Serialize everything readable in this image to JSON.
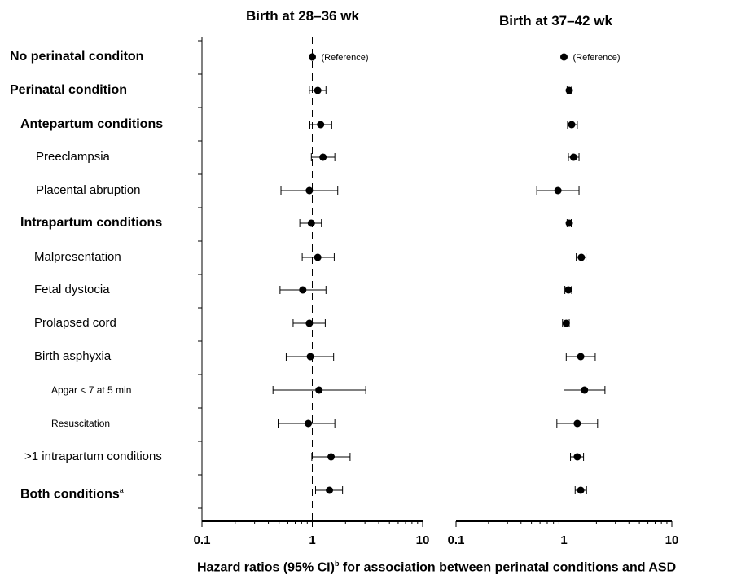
{
  "panels": [
    {
      "title": "Birth at 28–36 wk"
    },
    {
      "title": "Birth at 37–42 wk"
    }
  ],
  "rows": [
    {
      "label": "No perinatal conditon",
      "level": "lvl0"
    },
    {
      "label": "Perinatal condition",
      "level": "lvl0"
    },
    {
      "label": "Antepartum conditions",
      "level": "lvl1"
    },
    {
      "label": "Preeclampsia",
      "level": "lvl2"
    },
    {
      "label": "Placental abruption",
      "level": "lvl2"
    },
    {
      "label": "Intrapartum conditions",
      "level": "lvl1"
    },
    {
      "label": "Malpresentation",
      "level": "lvl2b"
    },
    {
      "label": "Fetal dystocia",
      "level": "lvl2b"
    },
    {
      "label": "Prolapsed cord",
      "level": "lvl2b"
    },
    {
      "label": "Birth asphyxia",
      "level": "lvl2b"
    },
    {
      "label": "Apgar < 7 at 5 min",
      "level": "lvl3"
    },
    {
      "label": "Resuscitation",
      "level": "lvl3"
    },
    {
      "label": ">1 intrapartum conditions",
      "level": "lvl2c"
    },
    {
      "label": "Both conditions",
      "level": "lvl1",
      "sup": "a"
    }
  ],
  "xlabel": {
    "main": "Hazard ratios (95% CI)",
    "sup": "b",
    "tail": " for association between perinatal conditions and ASD"
  },
  "chart_data": [
    {
      "type": "forest",
      "title": "Birth at 28–36 wk",
      "xscale": "log",
      "xlim": [
        0.1,
        10
      ],
      "xticks": [
        "0.1",
        "1",
        "10"
      ],
      "reference_line": 1,
      "reference_note": "(Reference)",
      "points": [
        {
          "hr": 1.0,
          "lo": null,
          "hi": null,
          "ref": true
        },
        {
          "hr": 1.12,
          "lo": 0.94,
          "hi": 1.33
        },
        {
          "hr": 1.19,
          "lo": 0.95,
          "hi": 1.5
        },
        {
          "hr": 1.25,
          "lo": 0.98,
          "hi": 1.6
        },
        {
          "hr": 0.94,
          "lo": 0.52,
          "hi": 1.7
        },
        {
          "hr": 0.98,
          "lo": 0.77,
          "hi": 1.21
        },
        {
          "hr": 1.12,
          "lo": 0.81,
          "hi": 1.58
        },
        {
          "hr": 0.82,
          "lo": 0.51,
          "hi": 1.33
        },
        {
          "hr": 0.94,
          "lo": 0.67,
          "hi": 1.31
        },
        {
          "hr": 0.96,
          "lo": 0.58,
          "hi": 1.56
        },
        {
          "hr": 1.15,
          "lo": 0.44,
          "hi": 3.05
        },
        {
          "hr": 0.92,
          "lo": 0.49,
          "hi": 1.6
        },
        {
          "hr": 1.48,
          "lo": 0.99,
          "hi": 2.2
        },
        {
          "hr": 1.43,
          "lo": 1.07,
          "hi": 1.88
        }
      ]
    },
    {
      "type": "forest",
      "title": "Birth at 37–42 wk",
      "xscale": "log",
      "xlim": [
        0.1,
        10
      ],
      "xticks": [
        "0.1",
        "1",
        "10"
      ],
      "reference_line": 1,
      "reference_note": "(Reference)",
      "points": [
        {
          "hr": 1.0,
          "lo": null,
          "hi": null,
          "ref": true
        },
        {
          "hr": 1.12,
          "lo": 1.07,
          "hi": 1.18
        },
        {
          "hr": 1.18,
          "lo": 1.08,
          "hi": 1.33
        },
        {
          "hr": 1.23,
          "lo": 1.1,
          "hi": 1.38
        },
        {
          "hr": 0.88,
          "lo": 0.56,
          "hi": 1.38
        },
        {
          "hr": 1.12,
          "lo": 1.07,
          "hi": 1.17
        },
        {
          "hr": 1.45,
          "lo": 1.3,
          "hi": 1.6
        },
        {
          "hr": 1.1,
          "lo": 1.02,
          "hi": 1.18
        },
        {
          "hr": 1.05,
          "lo": 0.97,
          "hi": 1.12
        },
        {
          "hr": 1.43,
          "lo": 1.05,
          "hi": 1.95
        },
        {
          "hr": 1.55,
          "lo": 1.0,
          "hi": 2.4
        },
        {
          "hr": 1.33,
          "lo": 0.86,
          "hi": 2.05
        },
        {
          "hr": 1.33,
          "lo": 1.15,
          "hi": 1.52
        },
        {
          "hr": 1.43,
          "lo": 1.27,
          "hi": 1.62
        }
      ]
    }
  ]
}
